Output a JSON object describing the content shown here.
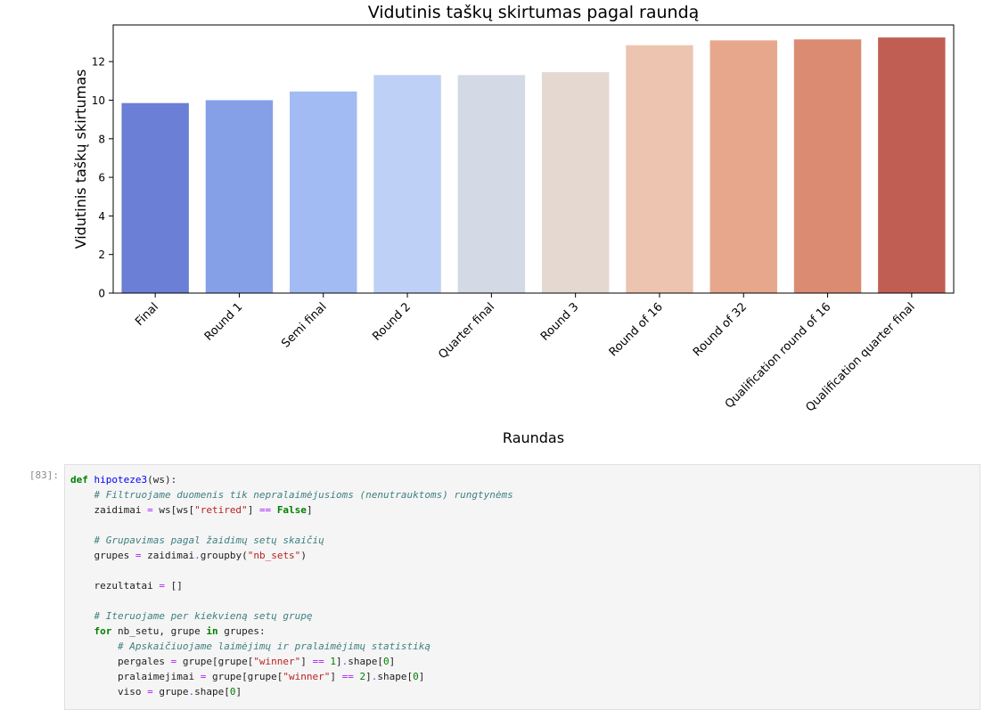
{
  "colors": {
    "bars": [
      "#6a7fd5",
      "#86a0e8",
      "#a2bbf3",
      "#bed0f5",
      "#d4d9e6",
      "#e4d8d1",
      "#edc4b0",
      "#e7a78c",
      "#da8b72",
      "#c15e53"
    ]
  },
  "chart_data": {
    "type": "bar",
    "title": "Vidutinis taškų skirtumas pagal raundą",
    "xlabel": "Raundas",
    "ylabel": "Vidutinis taškų skirtumas",
    "categories": [
      "Final",
      "Round 1",
      "Semi final",
      "Round 2",
      "Quarter final",
      "Round 3",
      "Round of 16",
      "Round of 32",
      "Qualification round of 16",
      "Qualification quarter final"
    ],
    "values": [
      9.85,
      10.0,
      10.45,
      11.3,
      11.3,
      11.45,
      12.85,
      13.1,
      13.15,
      13.25
    ],
    "ylim": [
      0,
      13.9
    ],
    "yticks": [
      0,
      2,
      4,
      6,
      8,
      10,
      12
    ],
    "grid": false
  },
  "notebook": {
    "prompt": "[83]:",
    "code_lines": [
      [
        {
          "t": "def ",
          "c": "kw"
        },
        {
          "t": "hipoteze3",
          "c": "fn"
        },
        {
          "t": "(ws):",
          "c": ""
        }
      ],
      [
        {
          "t": "    ",
          "c": ""
        },
        {
          "t": "# Filtruojame duomenis tik nepralaimėjusioms (nenutrauktoms) rungtynėms",
          "c": "cm"
        }
      ],
      [
        {
          "t": "    zaidimai ",
          "c": ""
        },
        {
          "t": "=",
          "c": "op"
        },
        {
          "t": " ws[ws[",
          "c": ""
        },
        {
          "t": "\"retired\"",
          "c": "st"
        },
        {
          "t": "] ",
          "c": ""
        },
        {
          "t": "==",
          "c": "op"
        },
        {
          "t": " ",
          "c": ""
        },
        {
          "t": "False",
          "c": "kc"
        },
        {
          "t": "]",
          "c": ""
        }
      ],
      [
        {
          "t": "",
          "c": ""
        }
      ],
      [
        {
          "t": "    ",
          "c": ""
        },
        {
          "t": "# Grupavimas pagal žaidimų setų skaičių",
          "c": "cm"
        }
      ],
      [
        {
          "t": "    grupes ",
          "c": ""
        },
        {
          "t": "=",
          "c": "op"
        },
        {
          "t": " zaidimai",
          "c": ""
        },
        {
          "t": ".",
          "c": "op"
        },
        {
          "t": "groupby(",
          "c": ""
        },
        {
          "t": "\"nb_sets\"",
          "c": "st"
        },
        {
          "t": ")",
          "c": ""
        }
      ],
      [
        {
          "t": "",
          "c": ""
        }
      ],
      [
        {
          "t": "    rezultatai ",
          "c": ""
        },
        {
          "t": "=",
          "c": "op"
        },
        {
          "t": " []",
          "c": ""
        }
      ],
      [
        {
          "t": "",
          "c": ""
        }
      ],
      [
        {
          "t": "    ",
          "c": ""
        },
        {
          "t": "# Iteruojame per kiekvieną setų grupę",
          "c": "cm"
        }
      ],
      [
        {
          "t": "    ",
          "c": ""
        },
        {
          "t": "for",
          "c": "kw"
        },
        {
          "t": " nb_setu, grupe ",
          "c": ""
        },
        {
          "t": "in",
          "c": "kw"
        },
        {
          "t": " grupes:",
          "c": ""
        }
      ],
      [
        {
          "t": "        ",
          "c": ""
        },
        {
          "t": "# Apskaičiuojame laimėjimų ir pralaimėjimų statistiką",
          "c": "cm"
        }
      ],
      [
        {
          "t": "        pergales ",
          "c": ""
        },
        {
          "t": "=",
          "c": "op"
        },
        {
          "t": " grupe[grupe[",
          "c": ""
        },
        {
          "t": "\"winner\"",
          "c": "st"
        },
        {
          "t": "] ",
          "c": ""
        },
        {
          "t": "==",
          "c": "op"
        },
        {
          "t": " ",
          "c": ""
        },
        {
          "t": "1",
          "c": "nm"
        },
        {
          "t": "]",
          "c": ""
        },
        {
          "t": ".",
          "c": "op"
        },
        {
          "t": "shape[",
          "c": ""
        },
        {
          "t": "0",
          "c": "nm"
        },
        {
          "t": "]",
          "c": ""
        }
      ],
      [
        {
          "t": "        pralaimejimai ",
          "c": ""
        },
        {
          "t": "=",
          "c": "op"
        },
        {
          "t": " grupe[grupe[",
          "c": ""
        },
        {
          "t": "\"winner\"",
          "c": "st"
        },
        {
          "t": "] ",
          "c": ""
        },
        {
          "t": "==",
          "c": "op"
        },
        {
          "t": " ",
          "c": ""
        },
        {
          "t": "2",
          "c": "nm"
        },
        {
          "t": "]",
          "c": ""
        },
        {
          "t": ".",
          "c": "op"
        },
        {
          "t": "shape[",
          "c": ""
        },
        {
          "t": "0",
          "c": "nm"
        },
        {
          "t": "]",
          "c": ""
        }
      ],
      [
        {
          "t": "        viso ",
          "c": ""
        },
        {
          "t": "=",
          "c": "op"
        },
        {
          "t": " grupe",
          "c": ""
        },
        {
          "t": ".",
          "c": "op"
        },
        {
          "t": "shape[",
          "c": ""
        },
        {
          "t": "0",
          "c": "nm"
        },
        {
          "t": "]",
          "c": ""
        }
      ]
    ]
  }
}
